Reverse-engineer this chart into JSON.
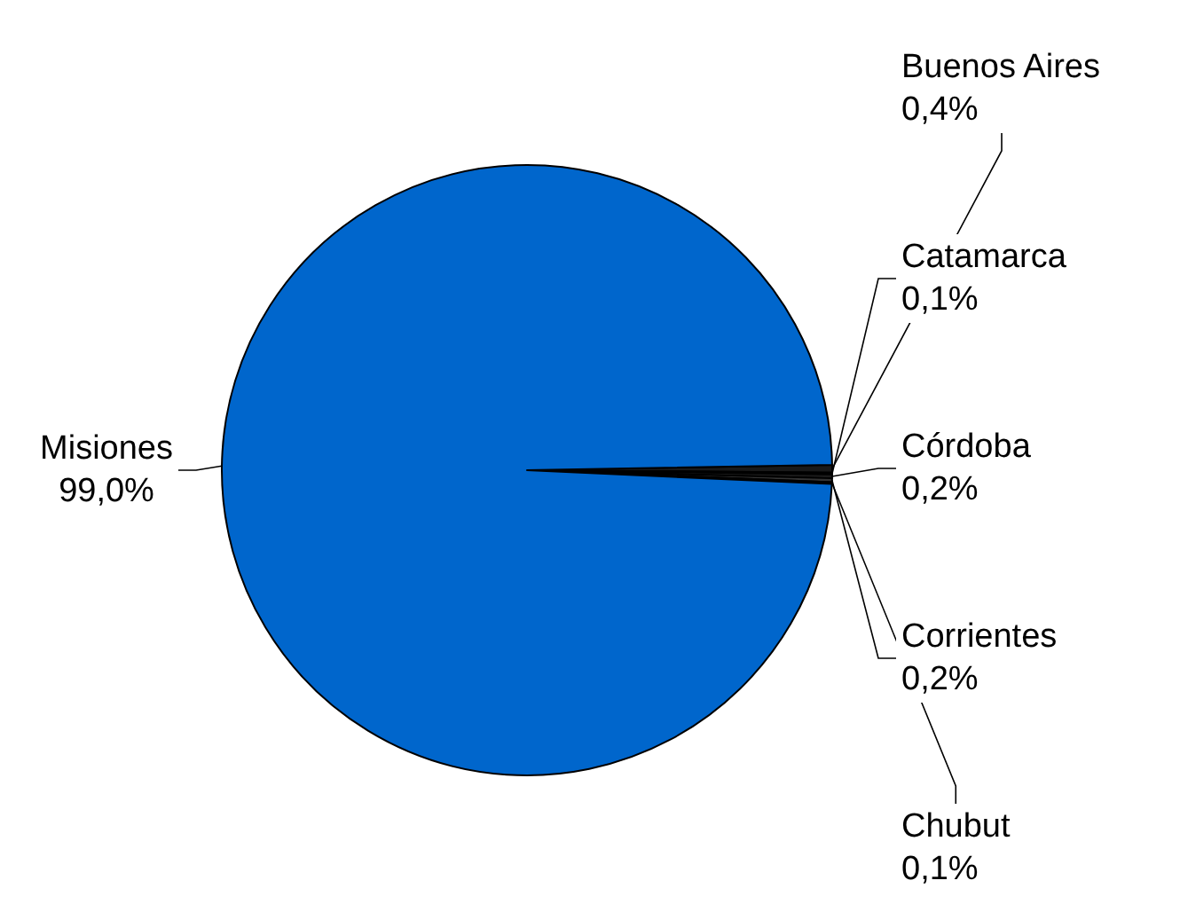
{
  "chart_data": {
    "type": "pie",
    "categories": [
      "Buenos Aires",
      "Catamarca",
      "Córdoba",
      "Corrientes",
      "Chubut",
      "Misiones"
    ],
    "values": [
      0.4,
      0.1,
      0.2,
      0.2,
      0.1,
      99.0
    ],
    "colors": [
      "#1a1a1a",
      "#262626",
      "#1a1a1a",
      "#333333",
      "#262626",
      "#0066cc"
    ],
    "value_labels": [
      "0,4%",
      "0,1%",
      "0,2%",
      "0,2%",
      "0,1%",
      "99,0%"
    ],
    "legend": false
  }
}
